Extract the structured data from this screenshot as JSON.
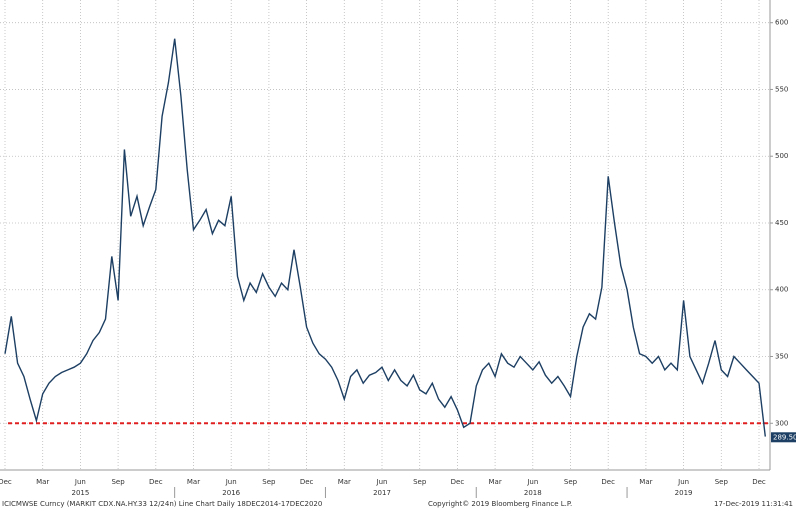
{
  "chart_data": {
    "type": "line",
    "series": [
      {
        "color": "#1d3f63",
        "values": [
          352,
          380,
          345,
          335,
          318,
          302,
          322,
          330,
          335,
          338,
          340,
          342,
          345,
          352,
          362,
          368,
          378,
          425,
          392,
          505,
          455,
          470,
          448,
          462,
          475,
          530,
          555,
          588,
          545,
          490,
          445,
          452,
          460,
          442,
          452,
          448,
          470,
          410,
          392,
          405,
          398,
          412,
          402,
          395,
          405,
          400,
          430,
          402,
          372,
          360,
          352,
          348,
          342,
          332,
          318,
          335,
          340,
          330,
          336,
          338,
          342,
          332,
          340,
          332,
          328,
          336,
          325,
          322,
          330,
          318,
          312,
          320,
          310,
          297,
          300,
          328,
          340,
          345,
          335,
          352,
          345,
          342,
          350,
          345,
          340,
          346,
          336,
          330,
          335,
          328,
          320,
          350,
          372,
          382,
          378,
          402,
          485,
          450,
          418,
          400,
          372,
          352,
          350,
          345,
          350,
          340,
          345,
          340,
          392,
          350,
          340,
          330,
          345,
          362,
          340,
          335,
          350,
          345,
          340,
          335,
          330,
          290
        ]
      }
    ],
    "xtick_labels": [
      "Dec",
      "Mar",
      "Jun",
      "Sep",
      "Dec",
      "Mar",
      "Jun",
      "Sep",
      "Dec",
      "Mar",
      "Jun",
      "Sep",
      "Dec",
      "Mar",
      "Jun",
      "Sep",
      "Dec",
      "Mar",
      "Jun",
      "Sep",
      "Dec"
    ],
    "years": [
      "2015",
      "2016",
      "2017",
      "2018",
      "2019"
    ],
    "ylim": [
      265,
      617
    ],
    "yticks": [
      300,
      350,
      400,
      450,
      500,
      550,
      600
    ],
    "grid": true,
    "reference_line": 300,
    "reference_color": "#e02020",
    "last_value": 289.502,
    "footer_left": "ICICMWSE Curncy (MARKIT CDX.NA.HY.33 12/24n) Line Chart  Daily 18DEC2014-17DEC2020",
    "footer_center": "Copyright© 2019 Bloomberg Finance L.P.",
    "footer_right": "17-Dec-2019 11:31:41"
  }
}
